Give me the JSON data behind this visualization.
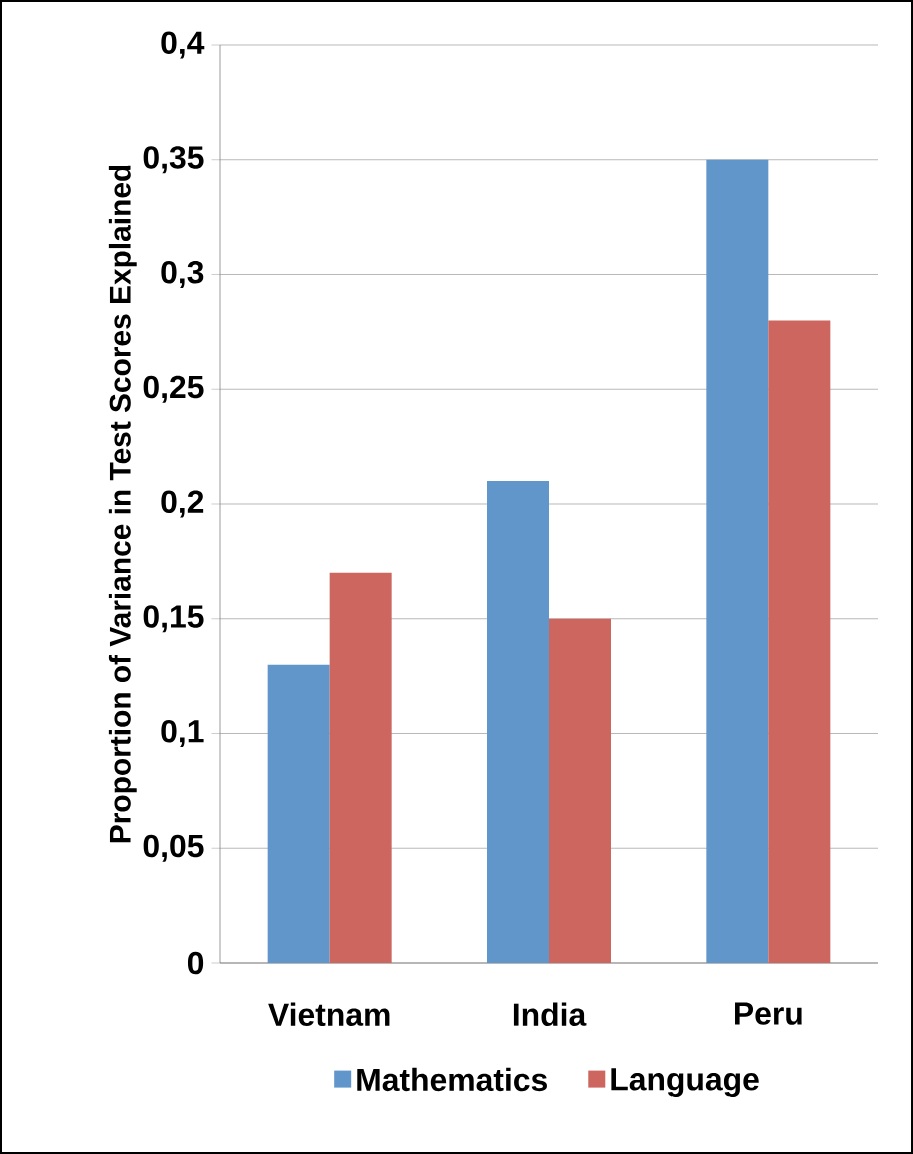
{
  "chart_data": {
    "type": "bar",
    "ylabel": "Proportion of Variance in Test Scores Explained",
    "categories": [
      "Vietnam",
      "India",
      "Peru"
    ],
    "series": [
      {
        "name": "Mathematics",
        "color": "#6196ca",
        "values": [
          0.13,
          0.21,
          0.35
        ]
      },
      {
        "name": "Language",
        "color": "#cc665f",
        "values": [
          0.17,
          0.15,
          0.28
        ]
      }
    ],
    "ylim": [
      0,
      0.4
    ],
    "yticks": [
      0,
      {
        "value": 0.05,
        "label": "0,05"
      },
      {
        "value": 0.1,
        "label": "0,1"
      },
      {
        "value": 0.15,
        "label": "0,15"
      },
      {
        "value": 0.2,
        "label": "0,2"
      },
      {
        "value": 0.25,
        "label": "0,25"
      },
      {
        "value": 0.3,
        "label": "0,3"
      },
      {
        "value": 0.35,
        "label": "0,35"
      },
      {
        "value": 0.4,
        "label": "0,4"
      }
    ],
    "grid": "y",
    "legend": "bottom"
  }
}
